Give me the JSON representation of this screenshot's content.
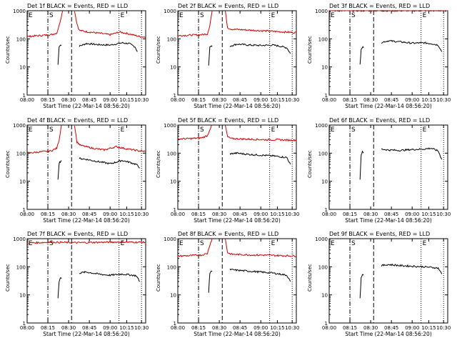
{
  "figure": {
    "legend_text": "BLACK = Events, RED = LLD",
    "xlabel": "Start Time (22-Mar-14 08:56:20)",
    "ylabel": "Counts/sec",
    "x_ticks": [
      "08:00",
      "08:15",
      "08:30",
      "08:45",
      "09:00",
      "10:15",
      "10:30"
    ],
    "y_ticks": [
      "1",
      "10",
      "100",
      "1000"
    ],
    "marker_start": "S",
    "marker_end": "E",
    "colors": {
      "events": "#000000",
      "lld": "#d40000",
      "axes": "#000000"
    }
  },
  "chart_data": [
    {
      "type": "line",
      "title": "Det 1f",
      "yscale": "log",
      "ylim": [
        1,
        1000
      ],
      "markers": {
        "start_label": "S",
        "end_label": "E",
        "left_label": "E"
      },
      "series": [
        {
          "name": "BLACK = Events",
          "segments": [
            {
              "x": [
                0.26,
                0.27,
                0.28,
                0.29
              ],
              "y": [
                12,
                55,
                60,
                58
              ]
            },
            {
              "x": [
                0.44,
                0.5,
                0.6,
                0.7,
                0.8,
                0.86,
                0.91,
                0.93
              ],
              "y": [
                55,
                68,
                62,
                60,
                72,
                68,
                52,
                35
              ]
            }
          ]
        },
        {
          "name": "RED = LLD",
          "segments": [
            {
              "x": [
                0.0,
                0.1,
                0.2,
                0.25,
                0.27,
                0.3
              ],
              "y": [
                120,
                130,
                140,
                160,
                300,
                1000
              ]
            },
            {
              "x": [
                0.4,
                0.42,
                0.44,
                0.5,
                0.6,
                0.7,
                0.78,
                0.86,
                0.95,
                1.0
              ],
              "y": [
                1000,
                350,
                200,
                180,
                160,
                140,
                175,
                150,
                120,
                115
              ]
            }
          ]
        }
      ]
    },
    {
      "type": "line",
      "title": "Det 2f",
      "yscale": "log",
      "ylim": [
        1,
        1000
      ],
      "markers": {
        "start_label": "S",
        "end_label": "E",
        "left_label": "E"
      },
      "series": [
        {
          "name": "BLACK = Events",
          "segments": [
            {
              "x": [
                0.26,
                0.27,
                0.28,
                0.29
              ],
              "y": [
                12,
                50,
                55,
                52
              ]
            },
            {
              "x": [
                0.44,
                0.5,
                0.6,
                0.7,
                0.8,
                0.86,
                0.92,
                0.95
              ],
              "y": [
                55,
                65,
                60,
                58,
                60,
                55,
                48,
                30
              ]
            }
          ]
        },
        {
          "name": "RED = LLD",
          "segments": [
            {
              "x": [
                0.0,
                0.1,
                0.2,
                0.25,
                0.27,
                0.29
              ],
              "y": [
                130,
                135,
                140,
                150,
                300,
                1000
              ]
            },
            {
              "x": [
                0.4,
                0.42,
                0.45,
                0.55,
                0.65,
                0.75,
                0.85,
                0.95,
                1.0
              ],
              "y": [
                1000,
                250,
                220,
                210,
                200,
                190,
                180,
                170,
                165
              ]
            }
          ]
        }
      ]
    },
    {
      "type": "line",
      "title": "Det 3f",
      "yscale": "log",
      "ylim": [
        1,
        1000
      ],
      "markers": {
        "start_label": "S",
        "end_label": "E",
        "left_label": "E"
      },
      "series": [
        {
          "name": "BLACK = Events",
          "segments": [
            {
              "x": [
                0.26,
                0.27,
                0.28,
                0.29
              ],
              "y": [
                12,
                45,
                50,
                48
              ]
            },
            {
              "x": [
                0.44,
                0.5,
                0.6,
                0.7,
                0.8,
                0.86,
                0.92,
                0.95
              ],
              "y": [
                75,
                85,
                78,
                70,
                72,
                68,
                60,
                35
              ]
            }
          ]
        },
        {
          "name": "RED = LLD",
          "segments": [
            {
              "x": [
                0.0,
                0.2,
                0.4,
                0.6,
                0.8,
                1.0
              ],
              "y": [
                1000,
                1000,
                1000,
                1000,
                1000,
                1000
              ]
            }
          ]
        }
      ]
    },
    {
      "type": "line",
      "title": "Det 4f",
      "yscale": "log",
      "ylim": [
        1,
        1000
      ],
      "markers": {
        "start_label": "S",
        "end_label": "E",
        "left_label": "E"
      },
      "series": [
        {
          "name": "BLACK = Events",
          "segments": [
            {
              "x": [
                0.26,
                0.27,
                0.28,
                0.29
              ],
              "y": [
                12,
                45,
                50,
                55
              ]
            },
            {
              "x": [
                0.44,
                0.5,
                0.6,
                0.7,
                0.8,
                0.86,
                0.92,
                0.95
              ],
              "y": [
                65,
                60,
                50,
                42,
                55,
                48,
                40,
                30
              ]
            }
          ]
        },
        {
          "name": "RED = LLD",
          "segments": [
            {
              "x": [
                0.0,
                0.1,
                0.2,
                0.25,
                0.27,
                0.29
              ],
              "y": [
                100,
                110,
                120,
                150,
                300,
                1000
              ]
            },
            {
              "x": [
                0.4,
                0.42,
                0.45,
                0.55,
                0.65,
                0.75,
                0.85,
                0.95,
                1.0
              ],
              "y": [
                1000,
                250,
                190,
                150,
                130,
                170,
                140,
                120,
                115
              ]
            }
          ]
        }
      ]
    },
    {
      "type": "line",
      "title": "Det 5f",
      "yscale": "log",
      "ylim": [
        1,
        1000
      ],
      "markers": {
        "start_label": "S",
        "end_label": "E",
        "left_label": ""
      },
      "series": [
        {
          "name": "BLACK = Events",
          "segments": [
            {
              "x": [
                0.44,
                0.5,
                0.6,
                0.7,
                0.8,
                0.86,
                0.92,
                0.95
              ],
              "y": [
                95,
                100,
                90,
                85,
                80,
                75,
                70,
                40
              ]
            }
          ]
        },
        {
          "name": "RED = LLD",
          "segments": [
            {
              "x": [
                0.0,
                0.1,
                0.2,
                0.25,
                0.27,
                0.29
              ],
              "y": [
                320,
                330,
                350,
                420,
                700,
                1000
              ]
            },
            {
              "x": [
                0.4,
                0.42,
                0.45,
                0.55,
                0.65,
                0.75,
                0.85,
                0.95,
                1.0
              ],
              "y": [
                1000,
                380,
                330,
                320,
                310,
                300,
                300,
                290,
                290
              ]
            }
          ]
        }
      ]
    },
    {
      "type": "line",
      "title": "Det 6f",
      "yscale": "log",
      "ylim": [
        1,
        1000
      ],
      "markers": {
        "start_label": "S",
        "end_label": "E",
        "left_label": "E"
      },
      "series": [
        {
          "name": "BLACK = Events",
          "segments": [
            {
              "x": [
                0.26,
                0.27,
                0.28,
                0.29
              ],
              "y": [
                12,
                90,
                110,
                100
              ]
            },
            {
              "x": [
                0.44,
                0.5,
                0.6,
                0.7,
                0.8,
                0.86,
                0.92,
                0.95
              ],
              "y": [
                140,
                130,
                125,
                135,
                140,
                150,
                120,
                60
              ]
            }
          ]
        }
      ]
    },
    {
      "type": "line",
      "title": "Det 7f",
      "yscale": "log",
      "ylim": [
        1,
        1000
      ],
      "markers": {
        "start_label": "S",
        "end_label": "E",
        "left_label": "E"
      },
      "series": [
        {
          "name": "BLACK = Events",
          "segments": [
            {
              "x": [
                0.26,
                0.27,
                0.28,
                0.29
              ],
              "y": [
                8,
                30,
                40,
                38
              ]
            },
            {
              "x": [
                0.44,
                0.5,
                0.6,
                0.7,
                0.8,
                0.86,
                0.92,
                0.95
              ],
              "y": [
                60,
                65,
                55,
                50,
                55,
                52,
                48,
                30
              ]
            }
          ]
        },
        {
          "name": "RED = LLD",
          "segments": [
            {
              "x": [
                0.0,
                0.2,
                0.4,
                0.6,
                0.8,
                1.0
              ],
              "y": [
                700,
                750,
                720,
                740,
                760,
                740
              ]
            }
          ]
        }
      ]
    },
    {
      "type": "line",
      "title": "Det 8f",
      "yscale": "log",
      "ylim": [
        1,
        1000
      ],
      "markers": {
        "start_label": "S",
        "end_label": "E",
        "left_label": "E"
      },
      "series": [
        {
          "name": "BLACK = Events",
          "segments": [
            {
              "x": [
                0.26,
                0.27,
                0.28,
                0.29
              ],
              "y": [
                12,
                60,
                70,
                68
              ]
            },
            {
              "x": [
                0.44,
                0.5,
                0.6,
                0.7,
                0.8,
                0.86,
                0.92,
                0.95
              ],
              "y": [
                80,
                75,
                70,
                65,
                60,
                55,
                50,
                30
              ]
            }
          ]
        },
        {
          "name": "RED = LLD",
          "segments": [
            {
              "x": [
                0.0,
                0.1,
                0.2,
                0.25,
                0.27,
                0.29
              ],
              "y": [
                240,
                250,
                260,
                300,
                600,
                1000
              ]
            },
            {
              "x": [
                0.4,
                0.42,
                0.45,
                0.55,
                0.65,
                0.75,
                0.85,
                0.95,
                1.0
              ],
              "y": [
                1000,
                320,
                280,
                270,
                260,
                260,
                250,
                245,
                240
              ]
            }
          ]
        }
      ]
    },
    {
      "type": "line",
      "title": "Det 9f",
      "yscale": "log",
      "ylim": [
        1,
        1000
      ],
      "markers": {
        "start_label": "S",
        "end_label": "E",
        "left_label": "E"
      },
      "series": [
        {
          "name": "BLACK = Events",
          "segments": [
            {
              "x": [
                0.26,
                0.27,
                0.28,
                0.29
              ],
              "y": [
                8,
                40,
                55,
                50
              ]
            },
            {
              "x": [
                0.44,
                0.5,
                0.6,
                0.7,
                0.8,
                0.86,
                0.92,
                0.95
              ],
              "y": [
                110,
                120,
                110,
                105,
                100,
                95,
                90,
                55
              ]
            }
          ]
        }
      ]
    }
  ]
}
